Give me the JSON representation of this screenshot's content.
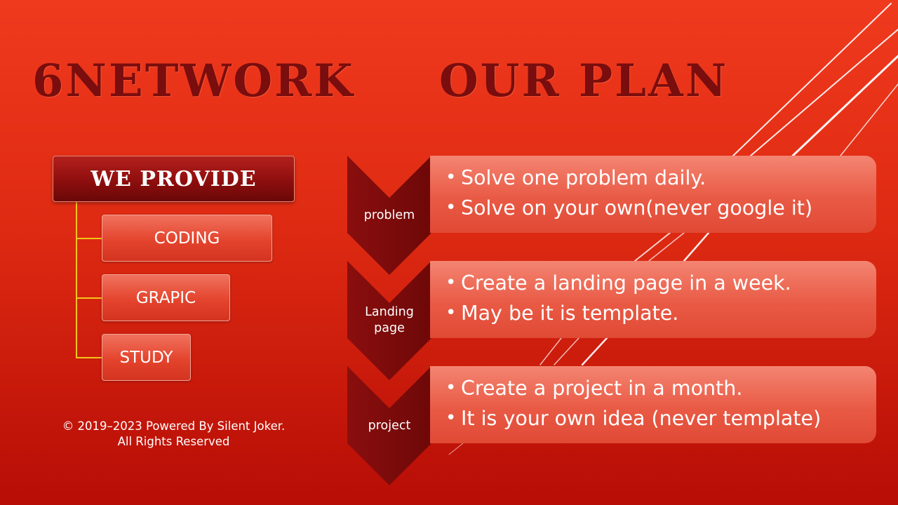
{
  "titles": {
    "left": "6NETWORK",
    "right": "OUR PLAN"
  },
  "org_chart": {
    "root": "WE PROVIDE",
    "children": [
      "CODING",
      "GRAPIC",
      "STUDY"
    ]
  },
  "copyright": {
    "line1": "© 2019–2023 Powered By Silent Joker.",
    "line2": "All Rights Reserved"
  },
  "plan": [
    {
      "label": "problem",
      "points": [
        "Solve one problem daily.",
        "Solve on your own(never google it)"
      ]
    },
    {
      "label_line1": "Landing",
      "label_line2": "page",
      "points": [
        "Create a landing page in a week.",
        "May be it is template."
      ]
    },
    {
      "label": "project",
      "points": [
        "Create a project in a month.",
        "It is your own idea (never template)"
      ]
    }
  ],
  "colors": {
    "background": "#e0301a",
    "title": "#7a0d0d",
    "chevron": "#7e0b0b",
    "panel": "#ea5d48",
    "connector": "#f2c617"
  }
}
